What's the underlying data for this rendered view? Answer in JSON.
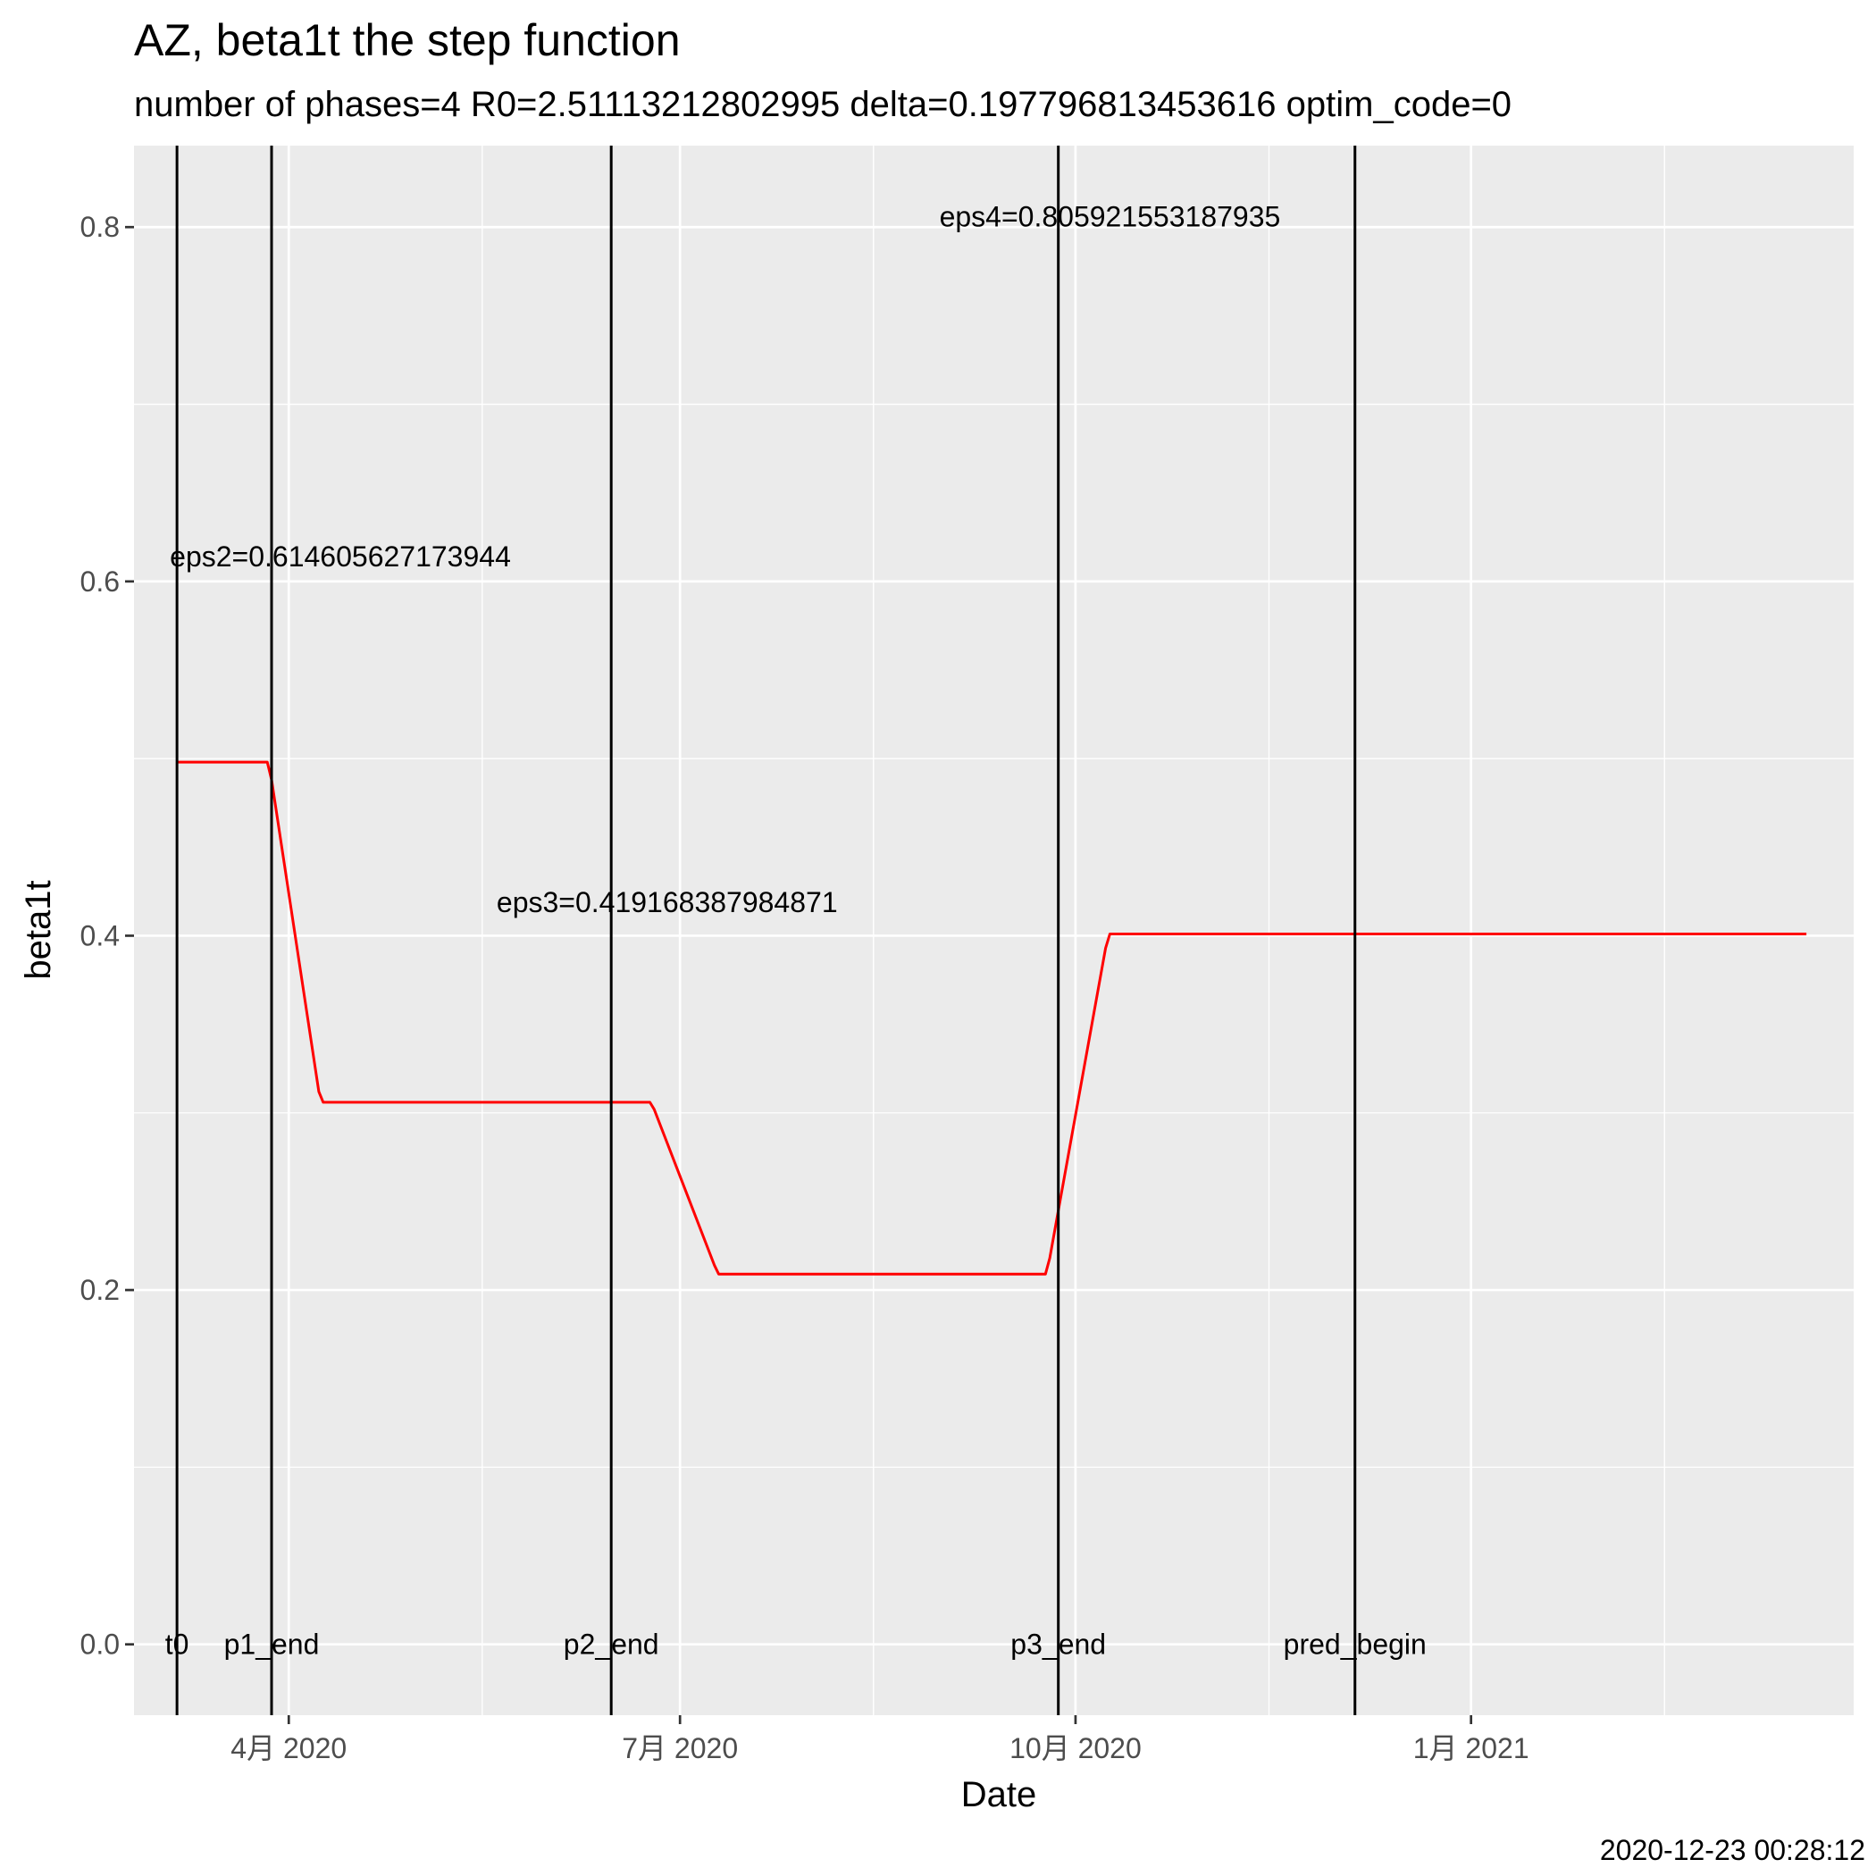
{
  "title": "AZ, beta1t the step function",
  "subtitle": "number of phases=4   R0=2.51113212802995   delta=0.197796813453616   optim_code=0",
  "footer": "2020-12-23 00:28:12",
  "chart_data": {
    "type": "line",
    "title": "AZ, beta1t the step function",
    "subtitle": "number of phases=4   R0=2.51113212802995   delta=0.197796813453616   optim_code=0",
    "xlabel": "Date",
    "ylabel": "beta1t",
    "xlim": [
      "2020-02-25",
      "2021-03-31"
    ],
    "ylim": [
      -0.04,
      0.846
    ],
    "grid": true,
    "x_ticks": [
      {
        "date": "2020-04-01",
        "label": "4月 2020"
      },
      {
        "date": "2020-07-01",
        "label": "7月 2020"
      },
      {
        "date": "2020-10-01",
        "label": "10月 2020"
      },
      {
        "date": "2021-01-01",
        "label": "1月 2021"
      }
    ],
    "x_minor_ticks": [
      "2020-02-15",
      "2020-05-16",
      "2020-08-15",
      "2020-11-15",
      "2021-02-15"
    ],
    "y_ticks": [
      {
        "value": 0.0,
        "label": "0.0"
      },
      {
        "value": 0.2,
        "label": "0.2"
      },
      {
        "value": 0.4,
        "label": "0.4"
      },
      {
        "value": 0.6,
        "label": "0.6"
      },
      {
        "value": 0.8,
        "label": "0.8"
      }
    ],
    "y_minor_ticks": [
      0.1,
      0.3,
      0.5,
      0.7
    ],
    "series": [
      {
        "color": "#ff0000",
        "points": [
          {
            "x": "2020-03-06",
            "y": 0.498
          },
          {
            "x": "2020-03-27",
            "y": 0.498
          },
          {
            "x": "2020-03-28",
            "y": 0.488
          },
          {
            "x": "2020-04-08",
            "y": 0.312
          },
          {
            "x": "2020-04-09",
            "y": 0.306
          },
          {
            "x": "2020-06-24",
            "y": 0.306
          },
          {
            "x": "2020-06-25",
            "y": 0.302
          },
          {
            "x": "2020-07-09",
            "y": 0.214
          },
          {
            "x": "2020-07-10",
            "y": 0.209
          },
          {
            "x": "2020-09-24",
            "y": 0.209
          },
          {
            "x": "2020-09-25",
            "y": 0.218
          },
          {
            "x": "2020-10-08",
            "y": 0.393
          },
          {
            "x": "2020-10-09",
            "y": 0.401
          },
          {
            "x": "2021-03-20",
            "y": 0.401
          }
        ]
      }
    ],
    "vlines": [
      {
        "date": "2020-03-06",
        "label": "t0"
      },
      {
        "date": "2020-03-28",
        "label": "p1_end"
      },
      {
        "date": "2020-06-15",
        "label": "p2_end"
      },
      {
        "date": "2020-09-27",
        "label": "p3_end"
      },
      {
        "date": "2020-12-05",
        "label": "pred_begin"
      }
    ],
    "annotations": [
      {
        "text": "eps2=0.614605627173944",
        "x": "2020-04-13",
        "y": 0.614
      },
      {
        "text": "eps3=0.419168387984871",
        "x": "2020-06-28",
        "y": 0.419
      },
      {
        "text": "eps4=0.805921553187935",
        "x": "2020-10-09",
        "y": 0.806
      }
    ]
  }
}
